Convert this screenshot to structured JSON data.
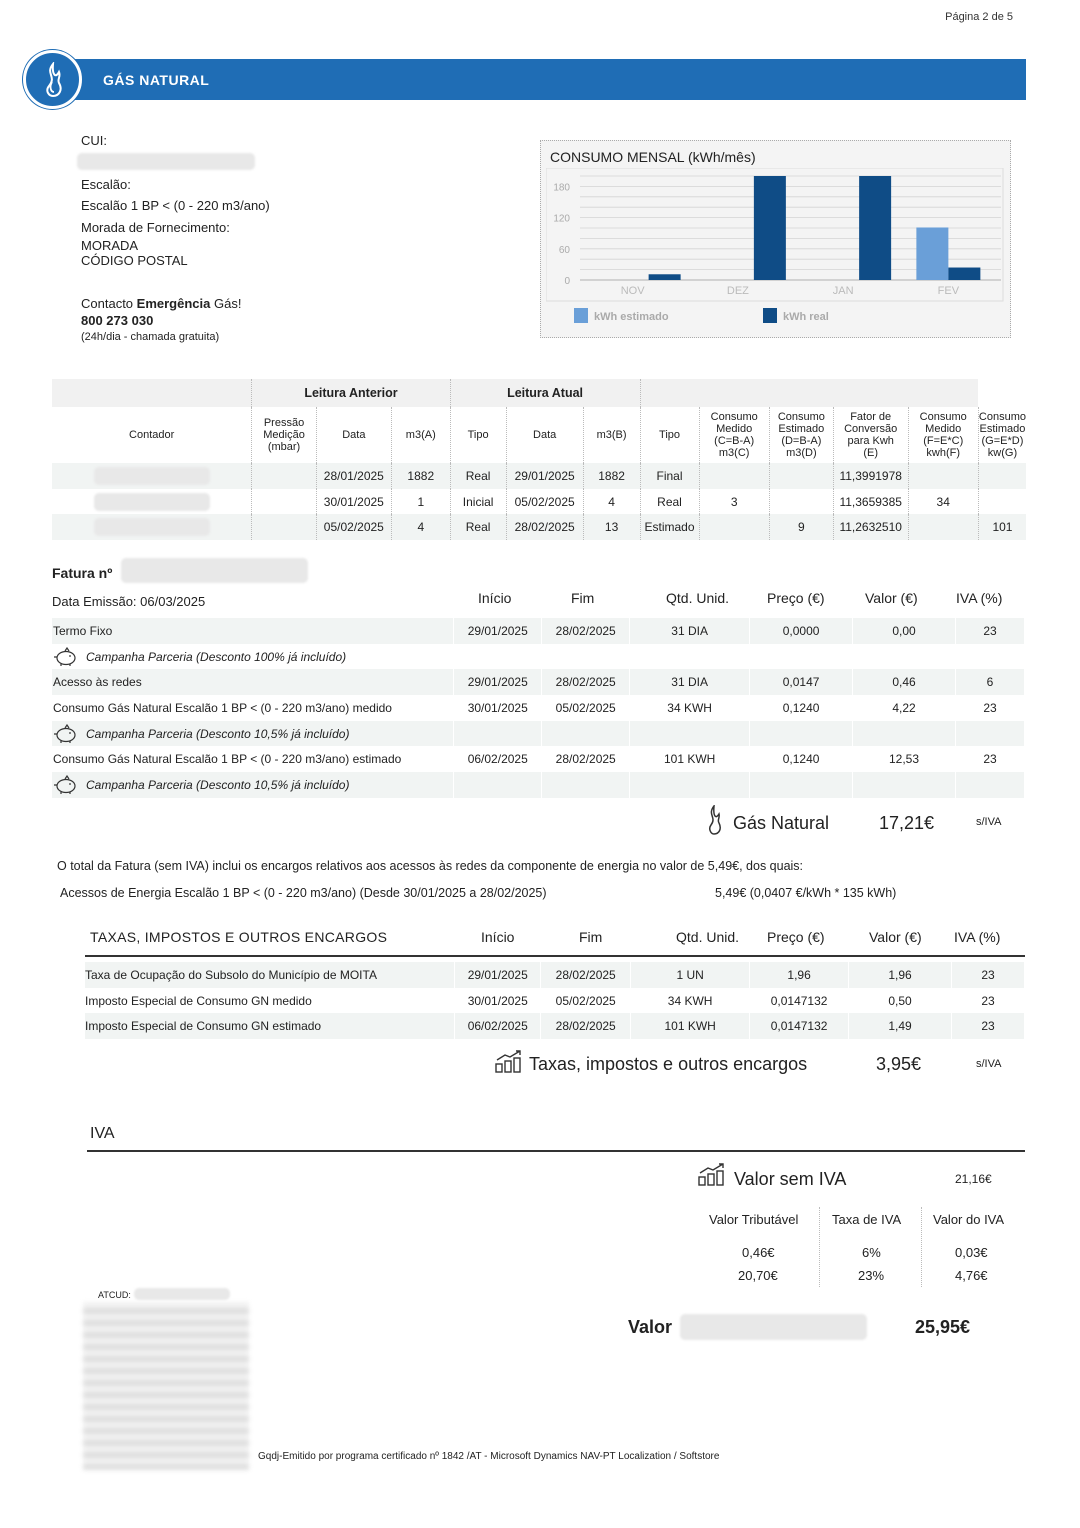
{
  "page_number": "Página 2 de 5",
  "banner_title": "GÁS NATURAL",
  "client": {
    "cui_label": "CUI:",
    "escalao_label": "Escalão:",
    "escalao_value": "Escalão 1 BP < (0 - 220 m3/ano)",
    "morada_label": "Morada de Fornecimento:",
    "morada_line1": "MORADA",
    "morada_line2": "CÓDIGO POSTAL",
    "contacto_prefix": "Contacto ",
    "contacto_bold": "Emergência",
    "contacto_suffix": " Gás!",
    "phone": "800 273 030",
    "phone_note": "(24h/dia - chamada gratuita)"
  },
  "chart_data": {
    "type": "bar",
    "title": "CONSUMO MENSAL (kWh/mês)",
    "categories": [
      "NOV",
      "DEZ",
      "JAN",
      "FEV"
    ],
    "yticks": [
      "0",
      "60",
      "120",
      "180"
    ],
    "ylim": [
      0,
      200
    ],
    "legend_position": "bottom",
    "series": [
      {
        "name": "kWh estimado",
        "color": "#6a9fd8",
        "values": [
          0,
          0,
          0,
          101
        ]
      },
      {
        "name": "kWh real",
        "color": "#0f4c86",
        "values": [
          11,
          200,
          200,
          24
        ]
      }
    ]
  },
  "readings": {
    "group_anterior": "Leitura Anterior",
    "group_atual": "Leitura Atual",
    "headers": {
      "contador": "Contador",
      "pressao": [
        "Pressão",
        "Medição",
        "(mbar)"
      ],
      "data": "Data",
      "m3a": "m3(A)",
      "tipo": "Tipo",
      "m3b": "m3(B)",
      "cons_medido": [
        "Consumo",
        "Medido",
        "(C=B-A)",
        "m3(C)"
      ],
      "cons_estimado": [
        "Consumo",
        "Estimado",
        "(D=B-A)",
        "m3(D)"
      ],
      "fator": [
        "Fator de",
        "Conversão",
        "para Kwh",
        "(E)"
      ],
      "cons_medido_kwh": [
        "Consumo",
        "Medido",
        "(F=E*C)",
        "kwh(F)"
      ],
      "cons_estimado_kwh": [
        "Consumo",
        "Estimado",
        "(G=E*D)",
        "kw(G)"
      ]
    },
    "rows": [
      {
        "data_ant": "28/01/2025",
        "m3a": "1882",
        "tipo_ant": "Real",
        "data_at": "29/01/2025",
        "m3b": "1882",
        "tipo_at": "Final",
        "c": "",
        "d": "",
        "e": "11,3991978",
        "f": "",
        "g": ""
      },
      {
        "data_ant": "30/01/2025",
        "m3a": "1",
        "tipo_ant": "Inicial",
        "data_at": "05/02/2025",
        "m3b": "4",
        "tipo_at": "Real",
        "c": "3",
        "d": "",
        "e": "11,3659385",
        "f": "34",
        "g": ""
      },
      {
        "data_ant": "05/02/2025",
        "m3a": "4",
        "tipo_ant": "Real",
        "data_at": "28/02/2025",
        "m3b": "13",
        "tipo_at": "Estimado",
        "c": "",
        "d": "9",
        "e": "11,2632510",
        "f": "",
        "g": "101"
      }
    ]
  },
  "invoice": {
    "fatura_label": "Fatura nº",
    "data_emissao": "Data Emissão:  06/03/2025",
    "cols": {
      "inicio": "Início",
      "fim": "Fim",
      "qtd": "Qtd. Unid.",
      "preco": "Preço (€)",
      "valor": "Valor (€)",
      "iva": "IVA (%)"
    },
    "lines": [
      {
        "desc": "Termo Fixo",
        "inicio": "29/01/2025",
        "fim": "28/02/2025",
        "qtd": "31 DIA",
        "preco": "0,0000",
        "valor": "0,00",
        "iva": "23"
      },
      {
        "camp": "Campanha Parceria (Desconto 100% já incluído)"
      },
      {
        "desc": "Acesso às redes",
        "inicio": "29/01/2025",
        "fim": "28/02/2025",
        "qtd": "31 DIA",
        "preco": "0,0147",
        "valor": "0,46",
        "iva": "6"
      },
      {
        "desc": "Consumo Gás Natural Escalão 1 BP < (0 - 220 m3/ano) medido",
        "inicio": "30/01/2025",
        "fim": "05/02/2025",
        "qtd": "34 KWH",
        "preco": "0,1240",
        "valor": "4,22",
        "iva": "23"
      },
      {
        "camp": "Campanha Parceria (Desconto 10,5% já incluído)"
      },
      {
        "desc": "Consumo Gás Natural Escalão 1 BP < (0 - 220 m3/ano) estimado",
        "inicio": "06/02/2025",
        "fim": "28/02/2025",
        "qtd": "101 KWH",
        "preco": "0,1240",
        "valor": "12,53",
        "iva": "23"
      },
      {
        "camp": "Campanha Parceria (Desconto 10,5% já incluído)"
      }
    ],
    "gas_total_label": "Gás Natural",
    "gas_total_value": "17,21€",
    "siva": "s/IVA",
    "note_total": "O total da Fatura (sem IVA) inclui os encargos relativos aos acessos às redes da componente de energia no valor de 5,49€, dos quais:",
    "note_acessos": "Acessos de Energia Escalão 1 BP < (0 - 220 m3/ano) (Desde 30/01/2025 a 28/02/2025)",
    "note_acessos_value": "5,49€ (0,0407 €/kWh * 135 kWh)"
  },
  "taxes": {
    "title": "TAXAS, IMPOSTOS E OUTROS ENCARGOS",
    "lines": [
      {
        "desc": "Taxa de Ocupação do Subsolo do Município de MOITA",
        "inicio": "29/01/2025",
        "fim": "28/02/2025",
        "qtd": "1 UN",
        "preco": "1,96",
        "valor": "1,96",
        "iva": "23"
      },
      {
        "desc": "Imposto Especial de Consumo GN medido",
        "inicio": "30/01/2025",
        "fim": "05/02/2025",
        "qtd": "34 KWH",
        "preco": "0,0147132",
        "valor": "0,50",
        "iva": "23"
      },
      {
        "desc": "Imposto Especial de Consumo GN estimado",
        "inicio": "06/02/2025",
        "fim": "28/02/2025",
        "qtd": "101 KWH",
        "preco": "0,0147132",
        "valor": "1,49",
        "iva": "23"
      }
    ],
    "total_label": "Taxas, impostos e outros encargos",
    "total_value": "3,95€"
  },
  "iva": {
    "title": "IVA",
    "valor_sem_iva_label": "Valor sem IVA",
    "valor_sem_iva": "21,16€",
    "col_tributavel": "Valor Tributável",
    "col_taxa": "Taxa de IVA",
    "col_valor": "Valor do IVA",
    "rows": [
      {
        "trib": "0,46€",
        "taxa": "6%",
        "valor": "0,03€"
      },
      {
        "trib": "20,70€",
        "taxa": "23%",
        "valor": "4,76€"
      }
    ]
  },
  "footer": {
    "atcud_label": "ATCUD:",
    "valor_label": "Valor",
    "valor_total": "25,95€",
    "certification": "Gqdj-Emitido por programa certificado nº 1842 /AT - Microsoft Dynamics NAV-PT Localization / Softstore"
  }
}
